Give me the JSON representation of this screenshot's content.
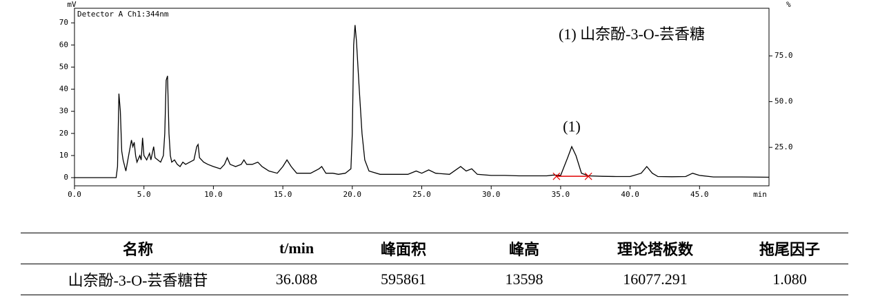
{
  "chart_data": {
    "type": "line",
    "annotation": "Detector A Ch1:344nm",
    "ylabel": "mV",
    "y2label": "%",
    "xlabel": "min",
    "legend_text": "(1)  山奈酚-3-O-芸香糖",
    "peak_label": {
      "text": "(1)",
      "x": 35.8,
      "y": 14
    },
    "integration_baseline": [
      34.7,
      37.0
    ],
    "xlim": [
      0,
      50
    ],
    "ylim": [
      -3.7,
      76.6
    ],
    "y2lim": [
      4,
      101
    ],
    "xticks": [
      {
        "value": 0,
        "label": "0.0"
      },
      {
        "value": 5,
        "label": "5.0"
      },
      {
        "value": 10,
        "label": "10.0"
      },
      {
        "value": 15,
        "label": "15.0"
      },
      {
        "value": 20,
        "label": "20.0"
      },
      {
        "value": 25,
        "label": "25.0"
      },
      {
        "value": 30,
        "label": "30.0"
      },
      {
        "value": 35,
        "label": "35.0"
      },
      {
        "value": 40,
        "label": "40.0"
      },
      {
        "value": 45,
        "label": "45.0"
      }
    ],
    "yticks": [
      0,
      10,
      20,
      30,
      40,
      50,
      60,
      70
    ],
    "y2ticks": [
      {
        "value": 25,
        "label": "25.0"
      },
      {
        "value": 50,
        "label": "50.0"
      },
      {
        "value": 75,
        "label": "75.0"
      }
    ],
    "x": [
      0,
      3.0,
      3.1,
      3.2,
      3.3,
      3.4,
      3.5,
      3.7,
      3.9,
      4.1,
      4.2,
      4.3,
      4.4,
      4.5,
      4.7,
      4.8,
      4.9,
      5.0,
      5.2,
      5.4,
      5.5,
      5.7,
      5.8,
      6.0,
      6.2,
      6.4,
      6.5,
      6.6,
      6.7,
      6.8,
      6.9,
      7.0,
      7.2,
      7.4,
      7.6,
      7.8,
      8.0,
      8.3,
      8.6,
      8.8,
      8.9,
      9.0,
      9.3,
      9.6,
      10.0,
      10.5,
      10.8,
      11.0,
      11.2,
      11.6,
      12.0,
      12.2,
      12.4,
      12.8,
      13.2,
      13.5,
      14.0,
      14.6,
      15.0,
      15.3,
      15.6,
      16.0,
      17.0,
      17.6,
      17.8,
      18.1,
      18.6,
      19.0,
      19.5,
      19.9,
      20.0,
      20.1,
      20.2,
      20.3,
      20.5,
      20.7,
      20.9,
      21.2,
      22.0,
      23.0,
      24.0,
      24.6,
      25.0,
      25.5,
      26.0,
      27.0,
      27.8,
      28.2,
      28.6,
      29.0,
      30.0,
      31.0,
      32.0,
      33.0,
      34.0,
      34.5,
      35.0,
      35.5,
      35.8,
      36.1,
      36.5,
      37.0,
      38.0,
      39.0,
      40.0,
      40.8,
      41.2,
      41.6,
      42.0,
      43.0,
      44.0,
      44.5,
      45.0,
      46.0,
      48.0,
      50.0
    ],
    "series": [
      {
        "name": "Detector A Ch1",
        "color": "#000000",
        "values": [
          0,
          0,
          5,
          38,
          30,
          12,
          8,
          3,
          10,
          17,
          14,
          16,
          10,
          7,
          10,
          8,
          18,
          10,
          8,
          11,
          8,
          14,
          9,
          8,
          7,
          10,
          20,
          44,
          46,
          20,
          10,
          7,
          8,
          6,
          5,
          7,
          6,
          7,
          8,
          14,
          15,
          9,
          7,
          6,
          5,
          4,
          6,
          9,
          6,
          5,
          6,
          8,
          6,
          6,
          7,
          5,
          3,
          2,
          5,
          8,
          5,
          2,
          2,
          4,
          5,
          2,
          2,
          1.5,
          2,
          4,
          20,
          60,
          69,
          62,
          40,
          20,
          8,
          3,
          1.5,
          1.5,
          1.5,
          3,
          2,
          3.5,
          2,
          1.5,
          5,
          3,
          4,
          1.5,
          1,
          1,
          0.8,
          0.8,
          0.8,
          1.2,
          1,
          9,
          14,
          10,
          2,
          0.8,
          0.6,
          0.5,
          0.5,
          2,
          5,
          2,
          0.5,
          0.4,
          0.5,
          2,
          1,
          0.3,
          0.3,
          0.2
        ]
      }
    ]
  },
  "table": {
    "header": [
      "名称",
      "t/min",
      "峰面积",
      "峰高",
      "理论塔板数",
      "拖尾因子"
    ],
    "rows": [
      [
        "山奈酚-3-O-芸香糖苷",
        "36.088",
        "595861",
        "13598",
        "16077.291",
        "1.080"
      ]
    ]
  }
}
